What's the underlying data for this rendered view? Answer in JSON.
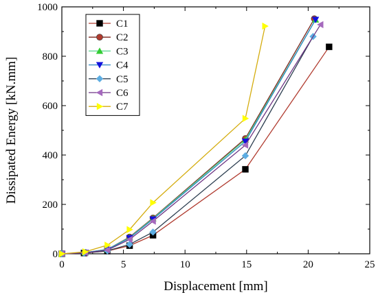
{
  "chart_data": {
    "type": "line",
    "title": "",
    "xlabel": "Displacement [mm]",
    "ylabel": "Dissipated Energy [kN.mm]",
    "xlim": [
      0,
      25
    ],
    "ylim": [
      0,
      1000
    ],
    "xticks": [
      0,
      5,
      10,
      15,
      20,
      25
    ],
    "yticks": [
      0,
      200,
      400,
      600,
      800,
      1000
    ],
    "grid": false,
    "legend_position": "top-left",
    "series": [
      {
        "name": "C1",
        "color": "#b03a2e",
        "marker": "square",
        "marker_color": "#000000",
        "x": [
          0,
          1.8,
          3.7,
          5.5,
          7.4,
          14.9,
          21.7
        ],
        "y": [
          0,
          3,
          11,
          33,
          75,
          342,
          838
        ]
      },
      {
        "name": "C2",
        "color": "#7b241c",
        "marker": "circle",
        "marker_color": "#b03a2e",
        "x": [
          0,
          1.9,
          3.7,
          5.5,
          7.4,
          14.9,
          20.5
        ],
        "y": [
          0,
          5,
          18,
          68,
          145,
          467,
          952
        ]
      },
      {
        "name": "C3",
        "color": "#58d68d",
        "marker": "triangle-up",
        "marker_color": "#33cc33",
        "x": [
          0,
          1.9,
          3.7,
          5.5,
          7.4,
          14.9,
          20.6
        ],
        "y": [
          0,
          5,
          18,
          66,
          143,
          462,
          948
        ]
      },
      {
        "name": "C4",
        "color": "#2e86c1",
        "marker": "triangle-down",
        "marker_color": "#1111dd",
        "x": [
          0,
          1.9,
          3.7,
          5.5,
          7.4,
          14.9,
          20.6
        ],
        "y": [
          0,
          5,
          17,
          64,
          140,
          455,
          948
        ]
      },
      {
        "name": "C5",
        "color": "#2c3e50",
        "marker": "diamond",
        "marker_color": "#5dade2",
        "x": [
          0,
          1.8,
          3.7,
          5.5,
          7.4,
          14.9,
          20.4
        ],
        "y": [
          0,
          3,
          12,
          38,
          88,
          397,
          880
        ]
      },
      {
        "name": "C6",
        "color": "#6c3483",
        "marker": "triangle-left",
        "marker_color": "#a569bd",
        "x": [
          0,
          1.9,
          3.7,
          5.5,
          7.4,
          14.9,
          21.0
        ],
        "y": [
          0,
          4,
          15,
          58,
          132,
          440,
          928
        ]
      },
      {
        "name": "C7",
        "color": "#d4ac0d",
        "marker": "triangle-right",
        "marker_color": "#ffff00",
        "x": [
          0,
          1.9,
          3.7,
          5.5,
          7.4,
          14.9,
          16.5
        ],
        "y": [
          0,
          8,
          35,
          98,
          207,
          548,
          922
        ]
      }
    ]
  }
}
